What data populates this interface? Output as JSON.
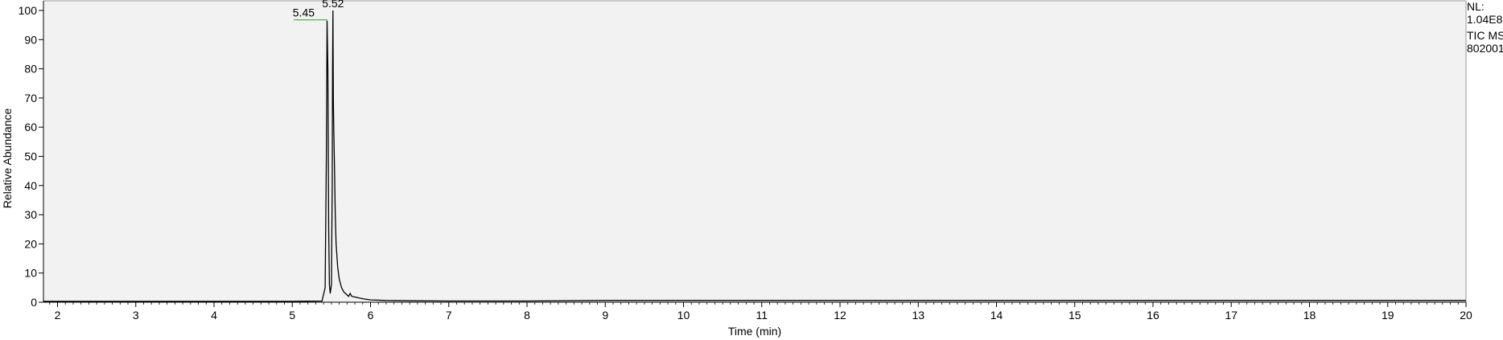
{
  "info": {
    "nl_label": "NL:",
    "nl_value": "1.04E8",
    "scan_filter": "TIC  MS",
    "file_id": "802001"
  },
  "chart_data": {
    "type": "line",
    "xlabel": "Time (min)",
    "ylabel": "Relative Abundance",
    "xlim": [
      1.82,
      20.0
    ],
    "ylim": [
      0,
      100
    ],
    "xticks": [
      2,
      3,
      4,
      5,
      6,
      7,
      8,
      9,
      10,
      11,
      12,
      13,
      14,
      15,
      16,
      17,
      18,
      19,
      20
    ],
    "yticks": [
      0,
      10,
      20,
      30,
      40,
      50,
      60,
      70,
      80,
      90,
      100
    ],
    "grid": false,
    "plot_background": "#f2f2f2",
    "trace_color": "#000000",
    "peak_marker_color": "#2e9e2e",
    "peaks": [
      {
        "rt": 5.45,
        "label": "5.45",
        "abundance": 96.5
      },
      {
        "rt": 5.52,
        "label": "5.52",
        "abundance": 100
      }
    ],
    "series": [
      {
        "x": [
          1.82,
          3.0,
          4.0,
          5.0,
          5.38,
          5.42,
          5.435,
          5.445,
          5.455,
          5.465,
          5.475,
          5.485,
          5.5,
          5.51,
          5.515,
          5.52,
          5.525,
          5.53,
          5.54,
          5.55,
          5.56,
          5.58,
          5.6,
          5.63,
          5.66,
          5.7,
          5.72,
          5.74,
          5.76,
          5.8,
          5.85,
          5.9,
          6.0,
          6.2,
          6.5,
          7.0,
          8.0,
          9.0,
          10.0,
          12.0,
          14.0,
          16.0,
          18.0,
          20.0
        ],
        "y": [
          0.3,
          0.3,
          0.3,
          0.3,
          0.4,
          5,
          50,
          96.5,
          80,
          25,
          6,
          3,
          6,
          40,
          80,
          100,
          70,
          60,
          45,
          30,
          20,
          12,
          8,
          5,
          3.5,
          2.5,
          2,
          3,
          2,
          1.8,
          1.5,
          1.2,
          0.8,
          0.6,
          0.5,
          0.4,
          0.4,
          0.6,
          0.6,
          0.6,
          0.6,
          0.6,
          0.6,
          0.6
        ]
      }
    ]
  }
}
